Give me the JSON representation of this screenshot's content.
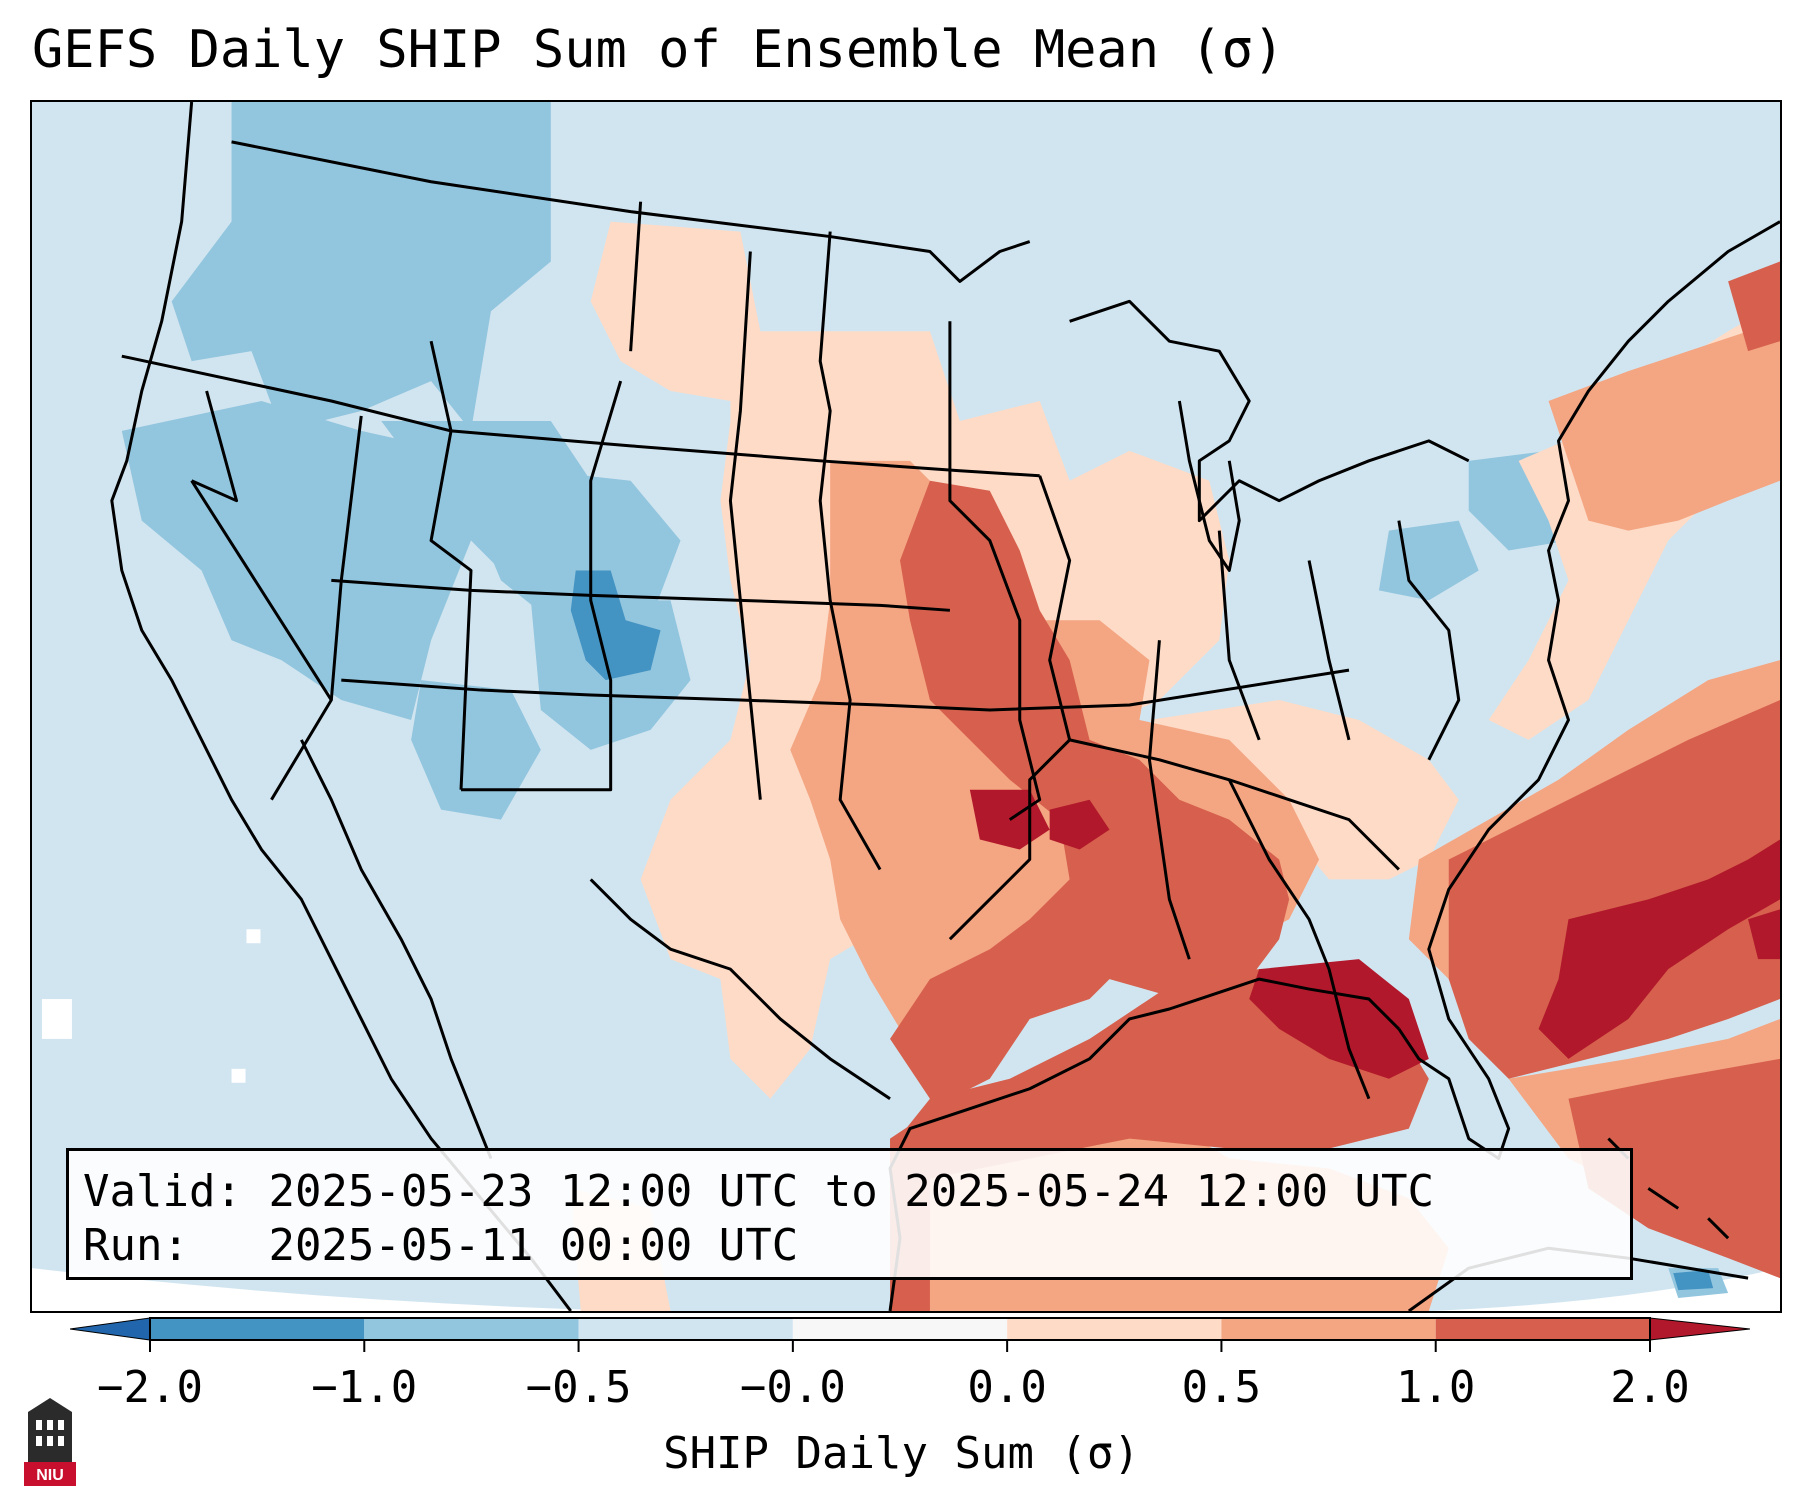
{
  "title": "GEFS Daily SHIP Sum of Ensemble Mean (σ)",
  "info": {
    "valid_label": "Valid:",
    "valid_value": "2025-05-23 12:00 UTC to 2025-05-24 12:00 UTC",
    "run_label": "Run:",
    "run_value": "2025-05-11 00:00 UTC"
  },
  "colorbar": {
    "label": "SHIP Daily Sum (σ)",
    "ticks": [
      "−2.0",
      "−1.0",
      "−0.5",
      "−0.0",
      "0.0",
      "0.5",
      "1.0",
      "2.0"
    ],
    "colors": [
      "#4393c3",
      "#92c5de",
      "#d1e5f0",
      "#f7f7f7",
      "#fddbc7",
      "#f4a582",
      "#d6604d",
      "#b2182b"
    ],
    "extend_low_color": "#2166ac",
    "extend_high_color": "#b2182b"
  },
  "logo": {
    "text": "NIU",
    "icon": "niu-tower-logo-icon",
    "color": "#c8102e"
  },
  "map": {
    "background_color": "#d1e5f0",
    "border_color": "#000000"
  }
}
